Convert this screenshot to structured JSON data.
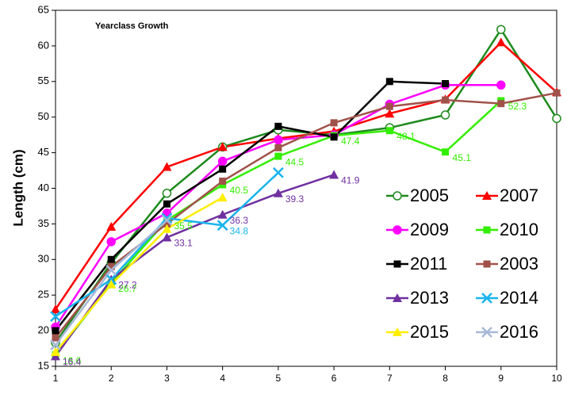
{
  "chart_data": {
    "type": "line",
    "title": "Yearclass Growth",
    "y_label": "Length (cm)",
    "x": [
      1,
      2,
      3,
      4,
      5,
      6,
      7,
      8,
      9,
      10
    ],
    "xlim": [
      1,
      10
    ],
    "xticks": [
      1,
      2,
      3,
      4,
      5,
      6,
      7,
      8,
      9,
      10
    ],
    "ylim": [
      15,
      65
    ],
    "yticks": [
      15,
      20,
      25,
      30,
      35,
      40,
      45,
      50,
      55,
      60,
      65
    ],
    "grid": false,
    "legend": "lower right",
    "series": [
      {
        "name": "2005",
        "color": "#1e8a1e",
        "marker": "circle-open",
        "values": [
          18.3,
          29.5,
          39.3,
          45.8,
          48.2,
          47.5,
          48.5,
          50.3,
          62.3,
          49.8
        ]
      },
      {
        "name": "2007",
        "color": "#ff0000",
        "marker": "triangle",
        "values": [
          23,
          34.6,
          43,
          45.8,
          47,
          48,
          50.5,
          52.5,
          60.5,
          53.5
        ]
      },
      {
        "name": "2009",
        "color": "#ff00ff",
        "marker": "circle",
        "values": [
          20.5,
          32.5,
          36.5,
          43.8,
          46.8,
          47.5,
          51.8,
          54.5,
          54.5,
          null
        ]
      },
      {
        "name": "2010",
        "color": "#33ee00",
        "marker": "square",
        "values": [
          16.6,
          26.7,
          35.5,
          40.5,
          44.5,
          47.4,
          48.1,
          45.1,
          52.3,
          null
        ],
        "value_labels": [
          "16.6",
          "26.7",
          "35.5",
          "40.5",
          "44.5",
          "47.4",
          "48.1",
          "45.1",
          "52.3",
          null
        ]
      },
      {
        "name": "2011",
        "color": "#000000",
        "marker": "square",
        "values": [
          20,
          30,
          37.8,
          42.7,
          48.7,
          47.2,
          55,
          54.7,
          null,
          null
        ]
      },
      {
        "name": "2003",
        "color": "#a0524a",
        "marker": "square",
        "values": [
          19,
          29,
          35,
          41,
          45.7,
          49.2,
          51.5,
          52.4,
          51.9,
          53.4
        ]
      },
      {
        "name": "2013",
        "color": "#7030a0",
        "marker": "triangle",
        "values": [
          16.4,
          27.2,
          33.1,
          36.3,
          39.3,
          41.9,
          null,
          null,
          null,
          null
        ],
        "value_labels": [
          "16.4",
          "27.2",
          "33.1",
          "36.3",
          "39.3",
          "41.9",
          null,
          null,
          null,
          null
        ]
      },
      {
        "name": "2014",
        "color": "#19b4ec",
        "marker": "x",
        "values": [
          22,
          27.2,
          35.8,
          34.8,
          42.2,
          null,
          null,
          null,
          null,
          null
        ],
        "value_labels": [
          null,
          null,
          null,
          "34.8",
          null,
          null,
          null,
          null,
          null,
          null
        ]
      },
      {
        "name": "2015",
        "color": "#ffee00",
        "marker": "triangle",
        "values": [
          17,
          26.5,
          34.3,
          38.7,
          null,
          null,
          null,
          null,
          null,
          null
        ]
      },
      {
        "name": "2016",
        "color": "#a8b8d8",
        "marker": "x",
        "values": [
          18,
          28.5,
          35.5,
          null,
          null,
          null,
          null,
          null,
          null,
          null
        ]
      }
    ]
  }
}
